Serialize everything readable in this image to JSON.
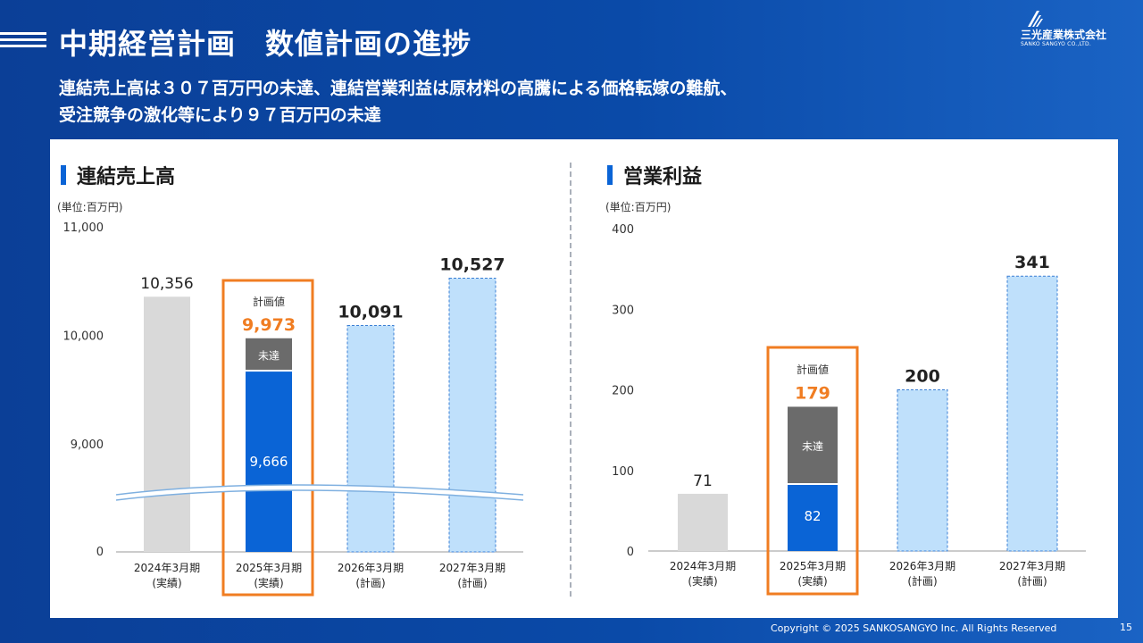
{
  "header": {
    "title": "中期経営計画　数値計画の進捗",
    "subtitle_line1": "連結売上高は３０７百万円の未達、連結営業利益は原材料の高騰による価格転嫁の難航、",
    "subtitle_line2": "受注競争の激化等により９７百万円の未達"
  },
  "logo": {
    "name": "三光産業株式会社",
    "name_en": "SANKO SANGYO CO.,LTD.",
    "icon": "sanko-logo-icon"
  },
  "colors": {
    "actual_gray": "#d9d9d9",
    "actual_blue": "#0a64d6",
    "shortfall_gray": "#6b6b6b",
    "plan_light_blue": "#bfe0fb",
    "highlight_orange": "#f07d22"
  },
  "chart_data": [
    {
      "type": "bar",
      "title": "連結売上高",
      "unit": "(単位:百万円)",
      "y_ticks": [
        "11,000",
        "10,000",
        "9,000",
        "0"
      ],
      "axis_break": true,
      "categories": [
        "2024年3月期",
        "2025年3月期",
        "2026年3月期",
        "2027年3月期"
      ],
      "category_sub": [
        "(実績)",
        "(実績)",
        "(計画)",
        "(計画)"
      ],
      "values": [
        10356,
        9666,
        10091,
        10527
      ],
      "value_labels": [
        "10,356",
        "9,666",
        "10,091",
        "10,527"
      ],
      "bar_kind": [
        "actual",
        "actual",
        "plan",
        "plan"
      ],
      "plan_value": 9973,
      "plan_label": "計画値",
      "plan_value_label": "9,973",
      "shortfall_label": "未達",
      "highlight_index": 1
    },
    {
      "type": "bar",
      "title": "営業利益",
      "unit": "(単位:百万円)",
      "y_ticks": [
        "400",
        "300",
        "200",
        "100",
        "0"
      ],
      "ylim": [
        0,
        400
      ],
      "categories": [
        "2024年3月期",
        "2025年3月期",
        "2026年3月期",
        "2027年3月期"
      ],
      "category_sub": [
        "(実績)",
        "(実績)",
        "(計画)",
        "(計画)"
      ],
      "values": [
        71,
        82,
        200,
        341
      ],
      "value_labels": [
        "71",
        "82",
        "200",
        "341"
      ],
      "bar_kind": [
        "actual",
        "actual",
        "plan",
        "plan"
      ],
      "plan_value": 179,
      "plan_label": "計画値",
      "plan_value_label": "179",
      "shortfall_label": "未達",
      "highlight_index": 1
    }
  ],
  "footer": {
    "copyright": "Copyright © 2025  SANKOSANGYO Inc. All Rights Reserved",
    "page": "15"
  }
}
